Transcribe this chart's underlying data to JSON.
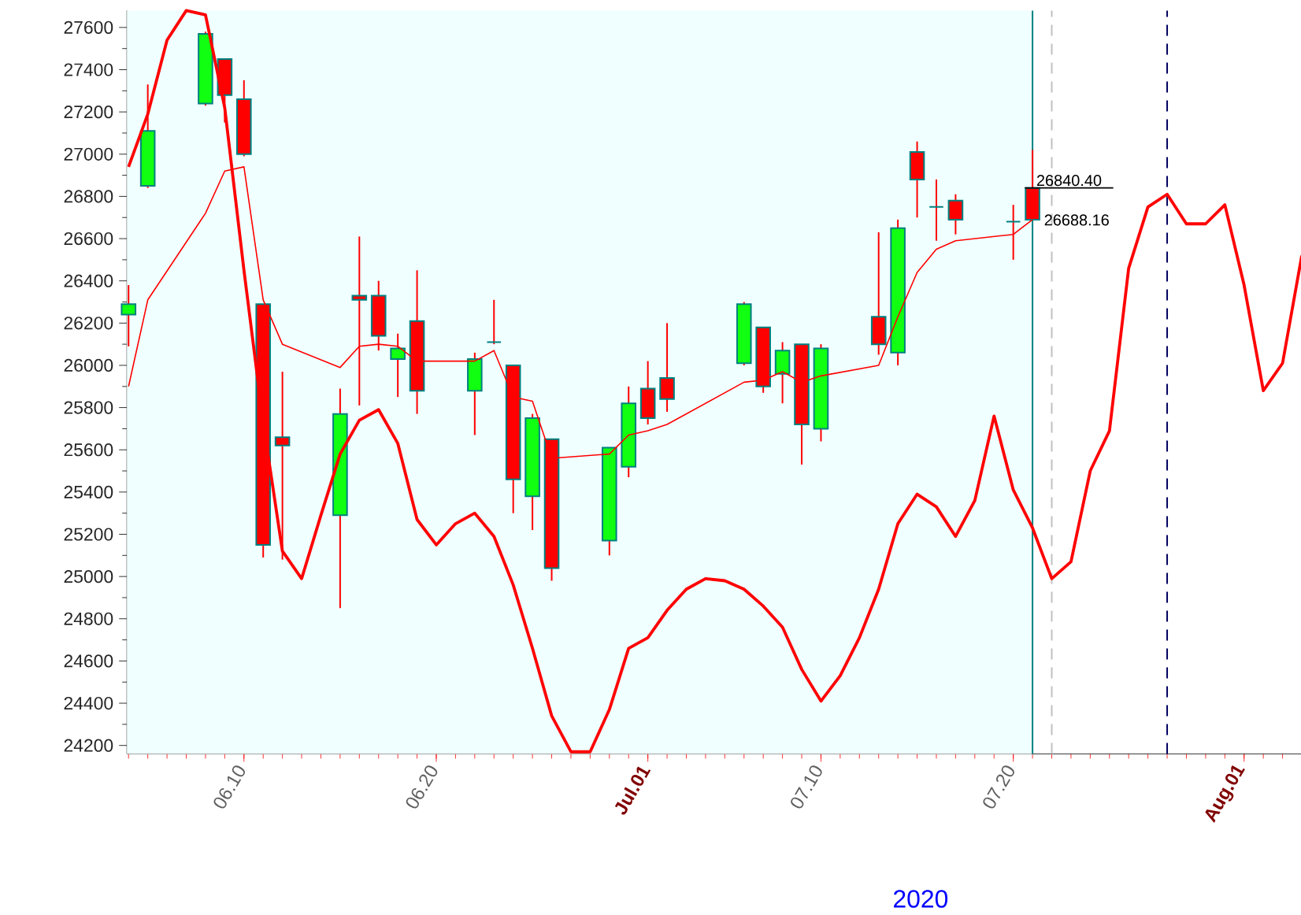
{
  "chart_data": {
    "type": "candlestick",
    "x": [
      "2020-06-04",
      "2020-06-05",
      "2020-06-08",
      "2020-06-09",
      "2020-06-10",
      "2020-06-11",
      "2020-06-12",
      "2020-06-15",
      "2020-06-16",
      "2020-06-17",
      "2020-06-18",
      "2020-06-19",
      "2020-06-22",
      "2020-06-23",
      "2020-06-24",
      "2020-06-25",
      "2020-06-26",
      "2020-06-29",
      "2020-06-30",
      "2020-07-01",
      "2020-07-02",
      "2020-07-06",
      "2020-07-07",
      "2020-07-08",
      "2020-07-09",
      "2020-07-10",
      "2020-07-13",
      "2020-07-14",
      "2020-07-15",
      "2020-07-16",
      "2020-07-17",
      "2020-07-20",
      "2020-07-21"
    ],
    "ohlc": [
      [
        26240,
        26380,
        26090,
        26290
      ],
      [
        26850,
        27330,
        26840,
        27110
      ],
      [
        27240,
        27580,
        27230,
        27570
      ],
      [
        27450,
        27450,
        27150,
        27280
      ],
      [
        27260,
        27350,
        26990,
        27000
      ],
      [
        26290,
        26290,
        25090,
        25150
      ],
      [
        25660,
        25970,
        25080,
        25620
      ],
      [
        25290,
        25890,
        24850,
        25770
      ],
      [
        26330,
        26610,
        25810,
        26310
      ],
      [
        26330,
        26400,
        26070,
        26140
      ],
      [
        26030,
        26150,
        25850,
        26080
      ],
      [
        26210,
        26450,
        25770,
        25880
      ],
      [
        25880,
        26060,
        25670,
        26030
      ],
      [
        26110,
        26310,
        26100,
        26110
      ],
      [
        26000,
        26000,
        25300,
        25460
      ],
      [
        25380,
        25770,
        25220,
        25750
      ],
      [
        25650,
        25650,
        24980,
        25040
      ],
      [
        25170,
        25610,
        25100,
        25610
      ],
      [
        25520,
        25900,
        25470,
        25820
      ],
      [
        25890,
        26020,
        25720,
        25750
      ],
      [
        25940,
        26200,
        25780,
        25840
      ],
      [
        26010,
        26300,
        26000,
        26290
      ],
      [
        26180,
        26180,
        25870,
        25900
      ],
      [
        25960,
        26110,
        25820,
        26070
      ],
      [
        26100,
        26100,
        25530,
        25720
      ],
      [
        25700,
        26100,
        25640,
        26080
      ],
      [
        26230,
        26630,
        26050,
        26100
      ],
      [
        26060,
        26690,
        26000,
        26650
      ],
      [
        27010,
        27060,
        26700,
        26880
      ],
      [
        26750,
        26880,
        26590,
        26750
      ],
      [
        26780,
        26810,
        26620,
        26690
      ],
      [
        26680,
        26760,
        26500,
        26680
      ],
      [
        26840,
        27020,
        26690,
        26690
      ]
    ],
    "colors": [
      "#11ff11",
      "#11ff11",
      "#11ff11",
      "#ff0000",
      "#ff0000",
      "#ff0000",
      "#ff0000",
      "#11ff11",
      "#ff0000",
      "#ff0000",
      "#11ff11",
      "#ff0000",
      "#11ff11",
      "#008080",
      "#ff0000",
      "#11ff11",
      "#ff0000",
      "#11ff11",
      "#11ff11",
      "#ff0000",
      "#ff0000",
      "#11ff11",
      "#ff0000",
      "#11ff11",
      "#ff0000",
      "#11ff11",
      "#ff0000",
      "#11ff11",
      "#ff0000",
      "#008080",
      "#ff0000",
      "#008080",
      "#ff0000"
    ],
    "series": [
      {
        "type": "line",
        "color": "#ff0000",
        "x": [
          "2020-06-04",
          "2020-06-05",
          "2020-06-08",
          "2020-06-09",
          "2020-06-10",
          "2020-06-11",
          "2020-06-12",
          "2020-06-15",
          "2020-06-16",
          "2020-06-17",
          "2020-06-18",
          "2020-06-19",
          "2020-06-22",
          "2020-06-23",
          "2020-06-24",
          "2020-06-25",
          "2020-06-26",
          "2020-06-29",
          "2020-06-30",
          "2020-07-01",
          "2020-07-02",
          "2020-07-06",
          "2020-07-07",
          "2020-07-08",
          "2020-07-09",
          "2020-07-10",
          "2020-07-13",
          "2020-07-14",
          "2020-07-15",
          "2020-07-16",
          "2020-07-17",
          "2020-07-20",
          "2020-07-21"
        ],
        "values": [
          25900,
          26310,
          26720,
          26920,
          26940,
          26310,
          26100,
          25990,
          26090,
          26100,
          26090,
          26020,
          26020,
          26070,
          25850,
          25830,
          25560,
          25580,
          25670,
          25690,
          25720,
          25920,
          25930,
          25970,
          25920,
          25950,
          26000,
          26230,
          26440,
          26550,
          26590,
          26620,
          26690
        ]
      },
      {
        "type": "line",
        "color": "#ff0000",
        "x": [
          "2020-06-04",
          "2020-06-05",
          "2020-06-06",
          "2020-06-07",
          "2020-06-08",
          "2020-06-09",
          "2020-06-10",
          "2020-06-11",
          "2020-06-12",
          "2020-06-13",
          "2020-06-14",
          "2020-06-15",
          "2020-06-16",
          "2020-06-17",
          "2020-06-18",
          "2020-06-19",
          "2020-06-20",
          "2020-06-21",
          "2020-06-22",
          "2020-06-23",
          "2020-06-24",
          "2020-06-25",
          "2020-06-26",
          "2020-06-27",
          "2020-06-28",
          "2020-06-29",
          "2020-06-30",
          "2020-07-01",
          "2020-07-02",
          "2020-07-03",
          "2020-07-04",
          "2020-07-05",
          "2020-07-06",
          "2020-07-07",
          "2020-07-08",
          "2020-07-09",
          "2020-07-10",
          "2020-07-11",
          "2020-07-12",
          "2020-07-13",
          "2020-07-14",
          "2020-07-15",
          "2020-07-16",
          "2020-07-17",
          "2020-07-18",
          "2020-07-19",
          "2020-07-20",
          "2020-07-21",
          "2020-07-22",
          "2020-07-23",
          "2020-07-24",
          "2020-07-25",
          "2020-07-26",
          "2020-07-27",
          "2020-07-28",
          "2020-07-29",
          "2020-07-30",
          "2020-07-31",
          "2020-08-01",
          "2020-08-02",
          "2020-08-03",
          "2020-08-04"
        ],
        "values": [
          26940,
          27190,
          27540,
          27680,
          27660,
          27220,
          26450,
          25730,
          25120,
          24990,
          25290,
          25580,
          25740,
          25790,
          25630,
          25270,
          25150,
          25250,
          25300,
          25190,
          24960,
          24660,
          24340,
          24170,
          24170,
          24370,
          24660,
          24710,
          24840,
          24940,
          24990,
          24980,
          24940,
          24860,
          24760,
          24560,
          24410,
          24530,
          24710,
          24940,
          25250,
          25390,
          25330,
          25190,
          25360,
          25760,
          25410,
          25230,
          24990,
          25070,
          25500,
          25690,
          26460,
          26750,
          26810,
          26670,
          26670,
          26760,
          26380,
          25880,
          26010,
          26520
        ]
      }
    ],
    "xlabel": "2020",
    "xlim": [
      "2020-06-03T22:00",
      "2020-08-04T12:00"
    ],
    "xticks": [
      {
        "value": "2020-06-10",
        "label": "06.10"
      },
      {
        "value": "2020-06-20",
        "label": "06.20"
      },
      {
        "value": "2020-07-01",
        "label": "Jul.01"
      },
      {
        "value": "2020-07-10",
        "label": "07.10"
      },
      {
        "value": "2020-07-20",
        "label": "07.20"
      },
      {
        "value": "2020-08-01",
        "label": "Aug.01"
      }
    ],
    "ylim": [
      24160,
      27680
    ],
    "yticks": [
      24200,
      24400,
      24600,
      24800,
      25000,
      25200,
      25400,
      25600,
      25800,
      26000,
      26200,
      26400,
      26600,
      26800,
      27000,
      27200,
      27400,
      27600
    ],
    "ref_lines": [
      {
        "axis": "x",
        "value": "2020-07-21",
        "color": "#008080",
        "line_style": "solid"
      },
      {
        "axis": "x",
        "value": "2020-07-22",
        "color": "#c0c0c0",
        "line_style": "dashed"
      },
      {
        "axis": "x",
        "value": "2020-07-28",
        "color": "#000060",
        "line_style": "dashed"
      }
    ],
    "bands": [
      {
        "axis": "x",
        "from": "2020-06-03T22:00",
        "to": "2020-07-21",
        "color": "#f0ffff"
      }
    ],
    "annotations": [
      {
        "text": "26840.40",
        "x": "2020-07-21",
        "y": 26840.4
      },
      {
        "text": "26688.16",
        "x": "2020-07-21",
        "y": 26688.16
      }
    ],
    "grid": false,
    "marker": "none",
    "line_style": "solid"
  }
}
